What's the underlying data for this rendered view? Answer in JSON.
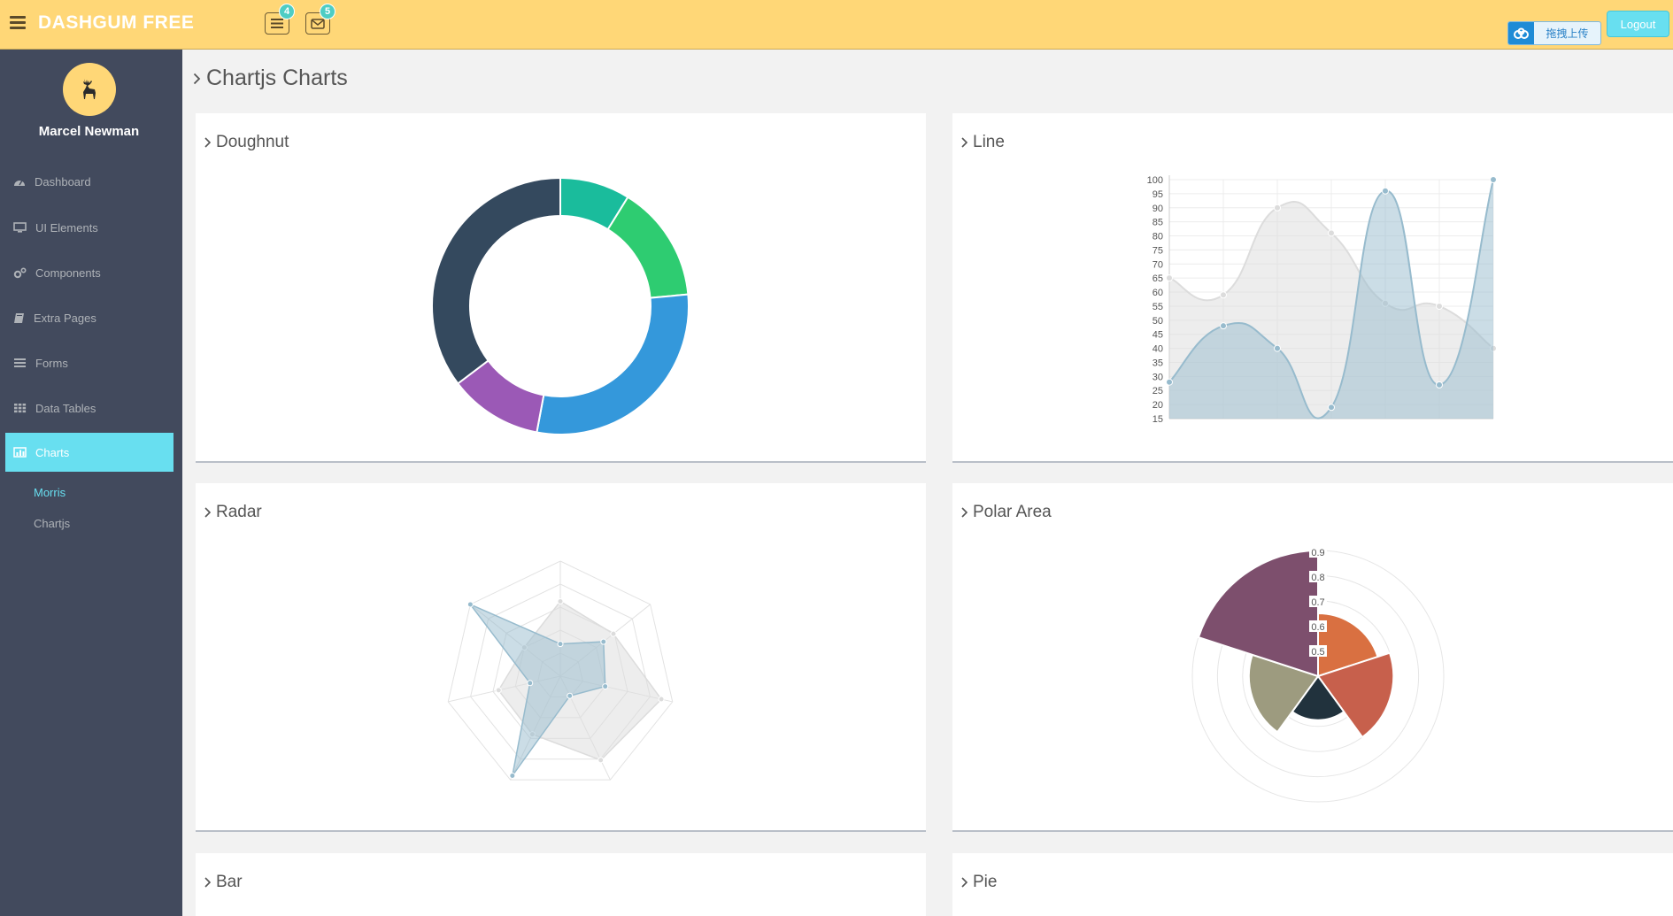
{
  "header": {
    "logo": "DASHGUM FREE",
    "tasks_badge": "4",
    "mail_badge": "5",
    "upload_label": "拖拽上传",
    "logout_label": "Logout"
  },
  "sidebar": {
    "user_name": "Marcel Newman",
    "items": [
      {
        "label": "Dashboard",
        "icon": "dashboard-icon"
      },
      {
        "label": "UI Elements",
        "icon": "desktop-icon"
      },
      {
        "label": "Components",
        "icon": "cogs-icon"
      },
      {
        "label": "Extra Pages",
        "icon": "book-icon"
      },
      {
        "label": "Forms",
        "icon": "tasks-icon"
      },
      {
        "label": "Data Tables",
        "icon": "th-icon"
      },
      {
        "label": "Charts",
        "icon": "bar-chart-icon",
        "active": true
      }
    ],
    "subitems": [
      {
        "label": "Morris",
        "active": true
      },
      {
        "label": "Chartjs"
      }
    ]
  },
  "page": {
    "title": "Chartjs Charts"
  },
  "panels": {
    "doughnut": "Doughnut",
    "line": "Line",
    "radar": "Radar",
    "polar": "Polar Area",
    "bar": "Bar",
    "pie": "Pie"
  },
  "chart_data": [
    {
      "type": "pie",
      "variant": "doughnut",
      "slices": [
        {
          "value": 30,
          "color": "#1abc9c"
        },
        {
          "value": 50,
          "color": "#2ecc71"
        },
        {
          "value": 100,
          "color": "#3498db"
        },
        {
          "value": 40,
          "color": "#9b59b6"
        },
        {
          "value": 120,
          "color": "#34495e"
        }
      ]
    },
    {
      "type": "area",
      "x_count": 7,
      "ylim": [
        15,
        100
      ],
      "y_ticks": [
        100,
        95,
        90,
        85,
        80,
        75,
        70,
        65,
        60,
        55,
        50,
        45,
        40,
        35,
        30,
        25,
        20,
        15
      ],
      "grid": true,
      "series": [
        {
          "values": [
            65,
            59,
            90,
            81,
            56,
            55,
            40
          ],
          "color": "#dcdcdc"
        },
        {
          "values": [
            28,
            48,
            40,
            19,
            96,
            27,
            100
          ],
          "color": "#97bbcd"
        }
      ]
    },
    {
      "type": "radar",
      "axes_count": 7,
      "max": 100,
      "series": [
        {
          "values": [
            65,
            59,
            90,
            81,
            56,
            55,
            40
          ],
          "color": "#dcdcdc"
        },
        {
          "values": [
            28,
            48,
            40,
            19,
            96,
            27,
            100
          ],
          "color": "#97bbcd"
        }
      ]
    },
    {
      "type": "polar",
      "r_ticks": [
        "0.5",
        "0.6",
        "0.7",
        "0.8",
        "0.9"
      ],
      "r_max": 1,
      "slices": [
        {
          "value": 0.5,
          "color": "#d97041"
        },
        {
          "value": 0.6,
          "color": "#c7604c"
        },
        {
          "value": 0.35,
          "color": "#21323d"
        },
        {
          "value": 0.55,
          "color": "#9d9b7f"
        },
        {
          "value": 1.0,
          "color": "#7d4f6d"
        }
      ]
    }
  ]
}
